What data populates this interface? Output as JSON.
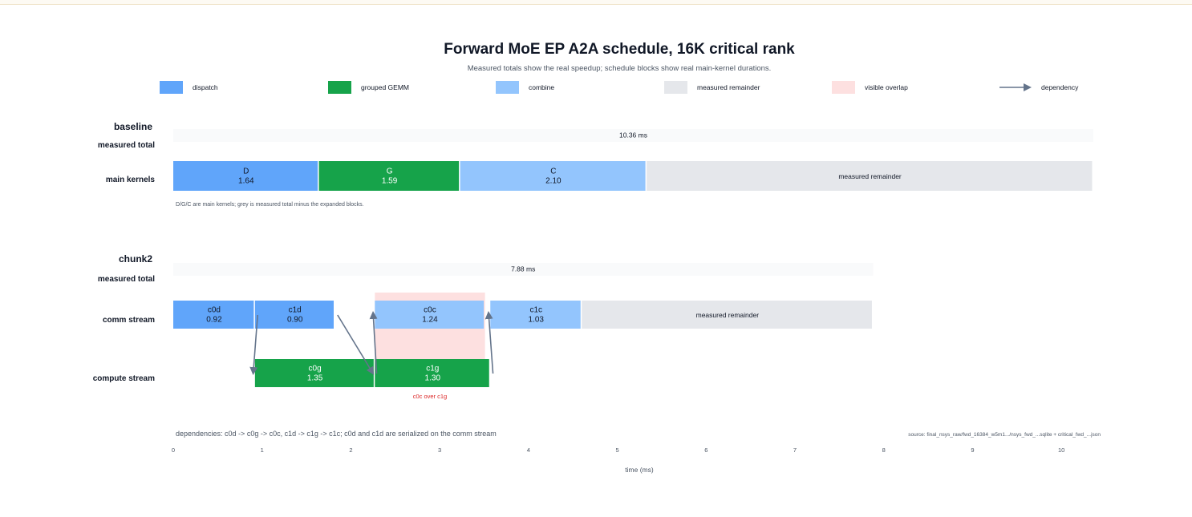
{
  "chart_data": {
    "type": "gantt",
    "title": "Forward MoE EP A2A schedule, 16K critical rank",
    "subtitle": "Measured totals show the real speedup; schedule blocks show real main-kernel durations.",
    "xlabel": "time (ms)",
    "xlim": [
      0,
      10.36
    ],
    "xticks": [
      "0",
      "1",
      "2",
      "3",
      "4",
      "5",
      "6",
      "7",
      "8",
      "9",
      "10"
    ],
    "legend_position": "top",
    "legend": [
      {
        "label": "dispatch",
        "kind": "dispatch"
      },
      {
        "label": "grouped GEMM",
        "kind": "gemm"
      },
      {
        "label": "combine",
        "kind": "combine"
      },
      {
        "label": "measured remainder",
        "kind": "remainder"
      },
      {
        "label": "visible overlap",
        "kind": "overlap"
      },
      {
        "label": "dependency",
        "kind": "dependency"
      }
    ],
    "colors": {
      "dispatch": "#60a5fa",
      "gemm": "#16a34a",
      "combine": "#93c5fd",
      "remainder": "#e5e7eb",
      "overlap": "#fde0e0",
      "dependency": "#64748b",
      "overlap_text": "#dc2626"
    },
    "panels": [
      {
        "id": "baseline",
        "name": "baseline",
        "total_label": "measured total",
        "total_ms": 10.36,
        "total_text": "10.36 ms",
        "note": "D/G/C are main kernels; grey is measured total minus the expanded blocks.",
        "rows": [
          {
            "label": "main kernels",
            "blocks": [
              {
                "name": "D",
                "value_text": "1.64",
                "start": 0,
                "dur": 1.64,
                "kind": "dispatch"
              },
              {
                "name": "G",
                "value_text": "1.59",
                "start": 1.64,
                "dur": 1.59,
                "kind": "gemm"
              },
              {
                "name": "C",
                "value_text": "2.10",
                "start": 3.23,
                "dur": 2.1,
                "kind": "combine"
              },
              {
                "name": "measured remainder",
                "value_text": "",
                "start": 5.33,
                "dur": 5.03,
                "kind": "remainder"
              }
            ]
          }
        ]
      },
      {
        "id": "chunk2",
        "name": "chunk2",
        "total_label": "measured total",
        "total_ms": 7.88,
        "total_text": "7.88 ms",
        "rows": [
          {
            "label": "comm stream",
            "blocks": [
              {
                "name": "c0d",
                "value_text": "0.92",
                "start": 0,
                "dur": 0.92,
                "kind": "dispatch"
              },
              {
                "name": "c1d",
                "value_text": "0.90",
                "start": 0.92,
                "dur": 0.9,
                "kind": "dispatch"
              },
              {
                "name": "c0c",
                "value_text": "1.24",
                "start": 2.27,
                "dur": 1.24,
                "kind": "combine"
              },
              {
                "name": "c1c",
                "value_text": "1.03",
                "start": 3.57,
                "dur": 1.03,
                "kind": "combine"
              },
              {
                "name": "measured remainder",
                "value_text": "",
                "start": 4.6,
                "dur": 3.28,
                "kind": "remainder"
              }
            ]
          },
          {
            "label": "compute stream",
            "blocks": [
              {
                "name": "c0g",
                "value_text": "1.35",
                "start": 0.92,
                "dur": 1.35,
                "kind": "gemm"
              },
              {
                "name": "c1g",
                "value_text": "1.30",
                "start": 2.27,
                "dur": 1.3,
                "kind": "gemm"
              }
            ]
          }
        ],
        "overlap": {
          "start": 2.27,
          "end": 3.51,
          "label": "c0c over c1g"
        },
        "dependencies": [
          {
            "from": "c0d",
            "to": "c0g",
            "x_from": 0.95,
            "x_to": 0.9
          },
          {
            "from": "c1d",
            "to": "c1g",
            "x_from": 1.85,
            "x_to": 2.25
          },
          {
            "from": "c0g",
            "to": "c0c",
            "x_from": 2.29,
            "x_to": 2.25
          },
          {
            "from": "c1g",
            "to": "c1c",
            "x_from": 3.6,
            "x_to": 3.55
          }
        ]
      }
    ],
    "dependency_note": "dependencies: c0d -> c0g -> c0c, c1d -> c1g -> c1c; c0d and c1d are serialized on the comm stream",
    "source": "source: final_nsys_raw/fwd_16384_w5m1.../nsys_fwd_...sqlite + critical_fwd_...json"
  }
}
